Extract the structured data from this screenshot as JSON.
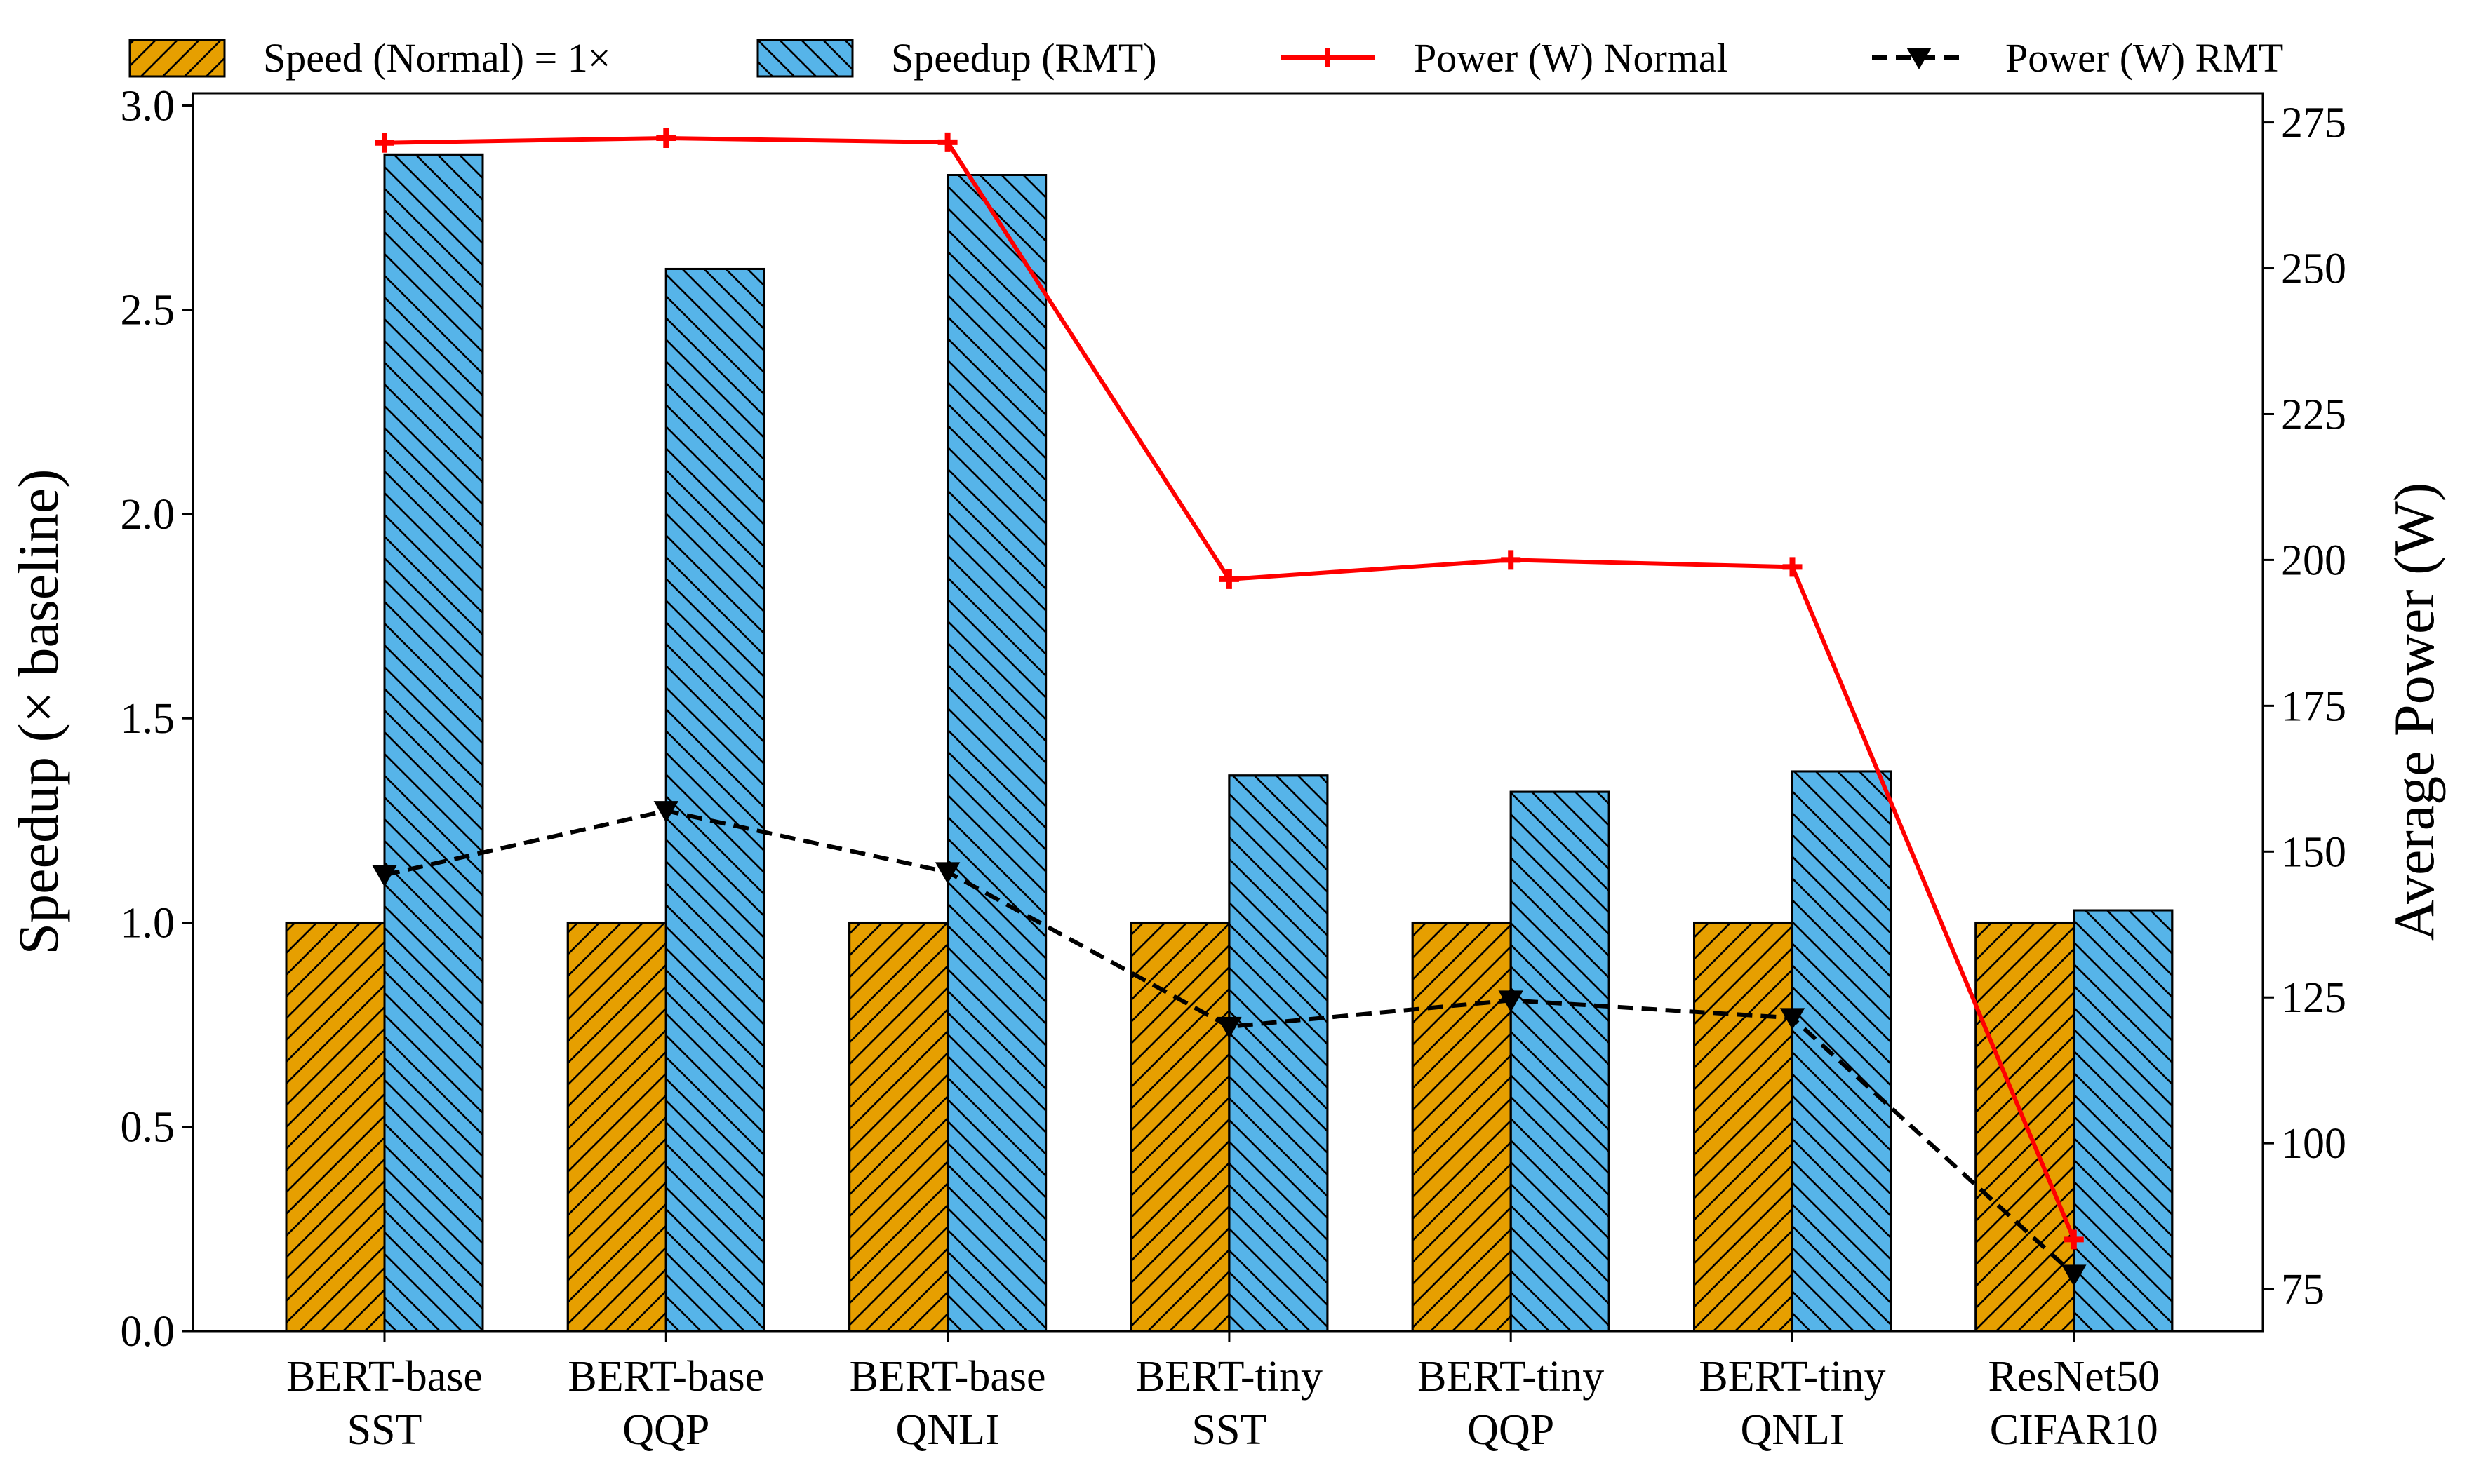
{
  "chart_data": {
    "type": "bar",
    "categories": [
      [
        "BERT-base",
        "SST"
      ],
      [
        "BERT-base",
        "QQP"
      ],
      [
        "BERT-base",
        "QNLI"
      ],
      [
        "BERT-tiny",
        "SST"
      ],
      [
        "BERT-tiny",
        "QQP"
      ],
      [
        "BERT-tiny",
        "QNLI"
      ],
      [
        "ResNet50",
        "CIFAR10"
      ]
    ],
    "series": [
      {
        "name": "Speed (Normal) = 1×",
        "kind": "bar",
        "axis": "left",
        "color": "#E69F00",
        "hatch": "forward",
        "values": [
          1.0,
          1.0,
          1.0,
          1.0,
          1.0,
          1.0,
          1.0
        ]
      },
      {
        "name": "Speedup (RMT)",
        "kind": "bar",
        "axis": "left",
        "color": "#56B4E9",
        "hatch": "back",
        "values": [
          2.88,
          2.6,
          2.83,
          1.36,
          1.32,
          1.37,
          1.03
        ]
      },
      {
        "name": "Power (W) Normal",
        "kind": "line",
        "axis": "right",
        "color": "#FF0000",
        "marker": "plus",
        "dash": "solid",
        "values": [
          271.5,
          272.3,
          271.6,
          196.7,
          200.0,
          198.8,
          83.5
        ]
      },
      {
        "name": "Power (W) RMT",
        "kind": "line",
        "axis": "right",
        "color": "#000000",
        "marker": "triangle-down",
        "dash": "dashed",
        "values": [
          146.0,
          157.0,
          146.5,
          120.0,
          124.5,
          121.5,
          77.5
        ]
      }
    ],
    "ylabel": "Speedup (× baseline)",
    "y2label": "Average Power (W)",
    "ylim": [
      0,
      3.03
    ],
    "y2lim": [
      67.8,
      280
    ],
    "yticks": [
      "0.0",
      "0.5",
      "1.0",
      "1.5",
      "2.0",
      "2.5",
      "3.0"
    ],
    "y2ticks": [
      "75",
      "100",
      "125",
      "150",
      "175",
      "200",
      "225",
      "250",
      "275"
    ],
    "legend_position": "top"
  }
}
